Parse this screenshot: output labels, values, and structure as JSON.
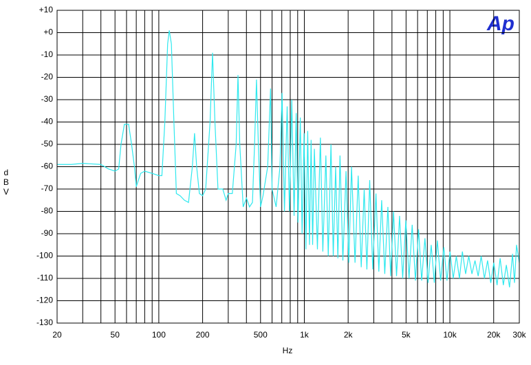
{
  "chart_data": {
    "type": "line",
    "logo": "Ap",
    "xlabel": "Hz",
    "ylabel": "dBV",
    "xlog": true,
    "grid": true,
    "color": "#2ee8ee",
    "xlim": [
      20,
      30000
    ],
    "ylim": [
      -130,
      10
    ],
    "xticks": [
      20,
      50,
      100,
      200,
      500,
      {
        "value": 1000,
        "label": "1k"
      },
      {
        "value": 2000,
        "label": "2k"
      },
      {
        "value": 5000,
        "label": "5k"
      },
      {
        "value": 10000,
        "label": "10k"
      },
      {
        "value": 20000,
        "label": "20k"
      },
      {
        "value": 30000,
        "label": "30k"
      }
    ],
    "xminor": [
      30,
      40,
      60,
      70,
      80,
      90,
      300,
      400,
      600,
      700,
      800,
      900,
      3000,
      4000,
      6000,
      7000,
      8000,
      9000
    ],
    "yticks": [
      {
        "value": 10,
        "label": "+10"
      },
      {
        "value": 0,
        "label": "+0"
      },
      -10,
      -20,
      -30,
      -40,
      -50,
      -60,
      -70,
      -80,
      -90,
      -100,
      -110,
      -120,
      -130
    ],
    "x": [
      20,
      25,
      30,
      40,
      45,
      50,
      53,
      55,
      58,
      62,
      65,
      68,
      70,
      75,
      80,
      90,
      100,
      105,
      110,
      115,
      118,
      122,
      127,
      132,
      140,
      150,
      160,
      170,
      176,
      182,
      190,
      200,
      210,
      225,
      234,
      243,
      255,
      275,
      290,
      300,
      320,
      340,
      350,
      360,
      380,
      400,
      420,
      440,
      455,
      469,
      483,
      500,
      520,
      560,
      586,
      600,
      640,
      680,
      703,
      730,
      762,
      790,
      820,
      850,
      879,
      905,
      938,
      965,
      996,
      1025,
      1055,
      1085,
      1113,
      1140,
      1172,
      1230,
      1289,
      1340,
      1406,
      1460,
      1524,
      1580,
      1641,
      1700,
      1758,
      1840,
      1934,
      2020,
      2110,
      2230,
      2344,
      2460,
      2578,
      2690,
      2813,
      2950,
      3106,
      3250,
      3399,
      3570,
      3750,
      3920,
      4102,
      4300,
      4512,
      4740,
      4981,
      5240,
      5508,
      5800,
      6094,
      6400,
      6739,
      7080,
      7442,
      7820,
      8204,
      8640,
      9083,
      9550,
      10021,
      10550,
      11075,
      11630,
      12189,
      12830,
      13478,
      14180,
      14884,
      15650,
      16408,
      17280,
      18166,
      19100,
      20041,
      21100,
      22151,
      23300,
      24436,
      25700,
      26956,
      27800,
      28714,
      30000
    ],
    "values": [
      -59,
      -59,
      -58.5,
      -59,
      -61,
      -62,
      -61,
      -50,
      -41,
      -41,
      -50,
      -60,
      -69,
      -63,
      -62,
      -63,
      -64,
      -64,
      -40,
      -5,
      1,
      -5,
      -40,
      -72,
      -73,
      -75,
      -76,
      -60,
      -45,
      -60,
      -72,
      -73,
      -70,
      -40,
      -9,
      -40,
      -70,
      -70,
      -75,
      -72,
      -72,
      -50,
      -19,
      -50,
      -78,
      -74,
      -78,
      -76,
      -50,
      -21,
      -50,
      -78,
      -73,
      -60,
      -25,
      -70,
      -78,
      -60,
      -27,
      -80,
      -33,
      -80,
      -30,
      -82,
      -36,
      -85,
      -38,
      -90,
      -45,
      -97,
      -44,
      -95,
      -48,
      -95,
      -52,
      -97,
      -47,
      -98,
      -55,
      -100,
      -50,
      -100,
      -60,
      -101,
      -55,
      -102,
      -62,
      -103,
      -60,
      -103,
      -64,
      -105,
      -70,
      -106,
      -66,
      -106,
      -72,
      -107,
      -75,
      -108,
      -78,
      -109,
      -80,
      -109,
      -82,
      -110,
      -84,
      -110,
      -86,
      -111,
      -88,
      -111,
      -92,
      -112,
      -95,
      -112,
      -93,
      -111,
      -96,
      -111,
      -98,
      -110,
      -100,
      -110,
      -98,
      -108,
      -100,
      -108,
      -102,
      -109,
      -100,
      -110,
      -102,
      -112,
      -103,
      -113,
      -101,
      -113,
      -104,
      -114,
      -99,
      -112,
      -95,
      -103
    ]
  }
}
